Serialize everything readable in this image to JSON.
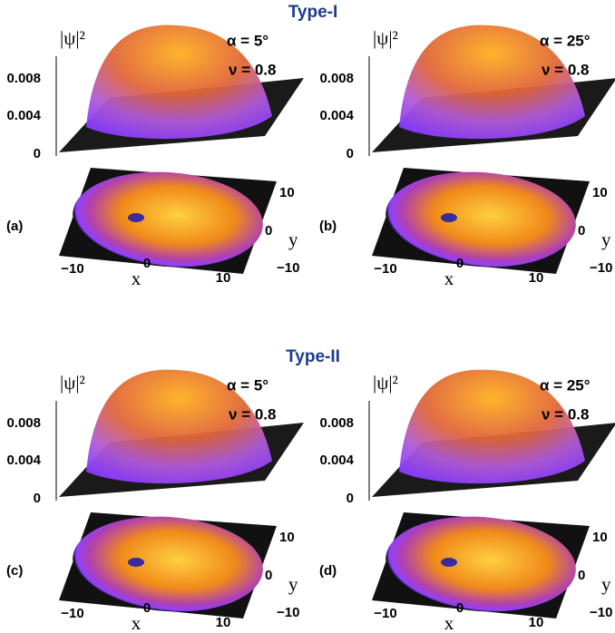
{
  "sections": [
    {
      "title": "Type-I",
      "panels": [
        {
          "label": "(a)",
          "zlabel": "|ψ|²",
          "alpha": "α = 5°",
          "nu": "ν = 0.8",
          "zticks": [
            "0.008",
            "0.004",
            "0"
          ],
          "xticks": [
            "−10",
            "0",
            "10"
          ],
          "xlabel": "x",
          "yticks": [
            "10",
            "0",
            "−10"
          ],
          "ylabel": "y"
        },
        {
          "label": "(b)",
          "zlabel": "|ψ|²",
          "alpha": "α = 25°",
          "nu": "ν = 0.8",
          "zticks": [
            "0.008",
            "0.004",
            "0"
          ],
          "xticks": [
            "−10",
            "0",
            "10"
          ],
          "xlabel": "x",
          "yticks": [
            "10",
            "0",
            "−10"
          ],
          "ylabel": "y"
        }
      ]
    },
    {
      "title": "Type-II",
      "panels": [
        {
          "label": "(c)",
          "zlabel": "|ψ|²",
          "alpha": "α = 5°",
          "nu": "ν = 0.8",
          "zticks": [
            "0.008",
            "0.004",
            "0"
          ],
          "xticks": [
            "−10",
            "0",
            "10"
          ],
          "xlabel": "x",
          "yticks": [
            "10",
            "0",
            "−10"
          ],
          "ylabel": "y"
        },
        {
          "label": "(d)",
          "zlabel": "|ψ|²",
          "alpha": "α = 25°",
          "nu": "ν = 0.8",
          "zticks": [
            "0.008",
            "0.004",
            "0"
          ],
          "xticks": [
            "−10",
            "0",
            "10"
          ],
          "xlabel": "x",
          "yticks": [
            "10",
            "0",
            "−10"
          ],
          "ylabel": "y"
        }
      ]
    }
  ]
}
